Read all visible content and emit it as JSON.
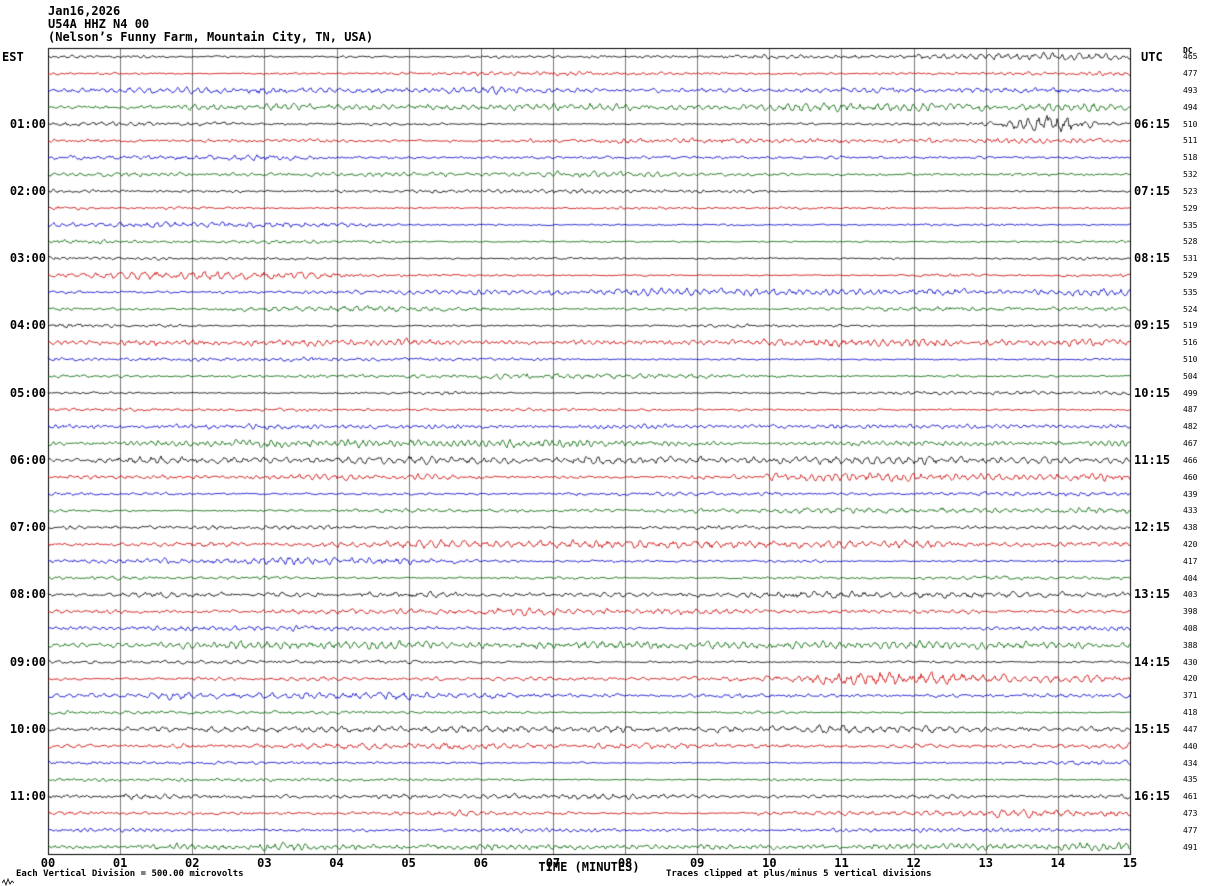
{
  "header": {
    "date": "Jan16,2026",
    "station": "U54A HHZ N4 00",
    "location": "(Nelson’s Funny Farm, Mountain City, TN, USA)"
  },
  "axes": {
    "left_label": "EST",
    "right_label": "UTC",
    "dc_label": "DC",
    "x_title": "TIME (MINUTES)",
    "x_ticks": [
      "00",
      "01",
      "02",
      "03",
      "04",
      "05",
      "06",
      "07",
      "08",
      "09",
      "10",
      "11",
      "12",
      "13",
      "14",
      "15"
    ]
  },
  "footer": {
    "left_text": "Each Vertical Division =  500.00 microvolts",
    "right_text": "Traces clipped at plus/minus 5 vertical divisions"
  },
  "colors": {
    "background": "#ffffff",
    "grid": "#7a7a7a",
    "border": "#000000",
    "trace_cycle": [
      "#000000",
      "#cc0000",
      "#0000cc",
      "#006600"
    ]
  },
  "rows": [
    {
      "dc": "465"
    },
    {
      "dc": "477"
    },
    {
      "dc": "493"
    },
    {
      "dc": "494"
    },
    {
      "est": "01:00",
      "utc": "06:15",
      "dc": "510"
    },
    {
      "dc": "511"
    },
    {
      "dc": "518"
    },
    {
      "dc": "532"
    },
    {
      "est": "02:00",
      "utc": "07:15",
      "dc": "523"
    },
    {
      "dc": "529"
    },
    {
      "dc": "535"
    },
    {
      "dc": "528"
    },
    {
      "est": "03:00",
      "utc": "08:15",
      "dc": "531"
    },
    {
      "dc": "529"
    },
    {
      "dc": "535"
    },
    {
      "dc": "524"
    },
    {
      "est": "04:00",
      "utc": "09:15",
      "dc": "519"
    },
    {
      "dc": "516"
    },
    {
      "dc": "510"
    },
    {
      "dc": "504"
    },
    {
      "est": "05:00",
      "utc": "10:15",
      "dc": "499"
    },
    {
      "dc": "487"
    },
    {
      "dc": "482"
    },
    {
      "dc": "467"
    },
    {
      "est": "06:00",
      "utc": "11:15",
      "dc": "466"
    },
    {
      "dc": "460"
    },
    {
      "dc": "439"
    },
    {
      "dc": "433"
    },
    {
      "est": "07:00",
      "utc": "12:15",
      "dc": "438"
    },
    {
      "dc": "420"
    },
    {
      "dc": "417"
    },
    {
      "dc": "404"
    },
    {
      "est": "08:00",
      "utc": "13:15",
      "dc": "403"
    },
    {
      "dc": "398"
    },
    {
      "dc": "408"
    },
    {
      "dc": "388"
    },
    {
      "est": "09:00",
      "utc": "14:15",
      "dc": "430"
    },
    {
      "dc": "420"
    },
    {
      "dc": "371"
    },
    {
      "dc": "418"
    },
    {
      "est": "10:00",
      "utc": "15:15",
      "dc": "447"
    },
    {
      "dc": "440"
    },
    {
      "dc": "434"
    },
    {
      "dc": "435"
    },
    {
      "est": "11:00",
      "utc": "16:15",
      "dc": "461"
    },
    {
      "dc": "473"
    },
    {
      "dc": "477"
    },
    {
      "dc": "491"
    }
  ],
  "events": [
    {
      "row": 4,
      "minute": 13.9,
      "sigma": 0.35,
      "amp": 2.4
    },
    {
      "row": 5,
      "minute": 8.0,
      "sigma": 1.8,
      "amp": 0.55
    },
    {
      "row": 6,
      "minute": 3.5,
      "sigma": 2.0,
      "amp": 0.3
    },
    {
      "row": 37,
      "minute": 11.5,
      "sigma": 0.6,
      "amp": 0.8
    }
  ],
  "chart_data": {
    "type": "line",
    "title": "U54A HHZ N4 00 (Nelson’s Funny Farm, Mountain City, TN, USA) — Jan16,2026 helicorder",
    "xlabel": "TIME (MINUTES)",
    "x_range": [
      0,
      15
    ],
    "x_tick_interval_minutes": 1,
    "rows": 48,
    "minutes_per_row": 15,
    "first_row_start_est": "00:00",
    "first_row_start_utc": "05:15",
    "hour_labels_est": [
      "01:00",
      "02:00",
      "03:00",
      "04:00",
      "05:00",
      "06:00",
      "07:00",
      "08:00",
      "09:00",
      "10:00",
      "11:00"
    ],
    "hour_labels_utc": [
      "06:15",
      "07:15",
      "08:15",
      "09:15",
      "10:15",
      "11:15",
      "12:15",
      "13:15",
      "14:15",
      "15:15",
      "16:15"
    ],
    "trace_color_cycle": [
      "black",
      "red",
      "blue",
      "green"
    ],
    "vertical_division_microvolts": 500.0,
    "clip_divisions": 5,
    "dc_offsets": [
      465,
      477,
      493,
      494,
      510,
      511,
      518,
      532,
      523,
      529,
      535,
      528,
      531,
      529,
      535,
      524,
      519,
      516,
      510,
      504,
      499,
      487,
      482,
      467,
      466,
      460,
      439,
      433,
      438,
      420,
      417,
      404,
      403,
      398,
      408,
      388,
      430,
      420,
      371,
      418,
      447,
      440,
      434,
      435,
      461,
      473,
      477,
      491
    ],
    "note": "Continuous seismic background-noise traces; waveform samples are unreadable at screenshot scale and are regenerated procedurally with a burst event near 01:00 EST minute ~14."
  }
}
